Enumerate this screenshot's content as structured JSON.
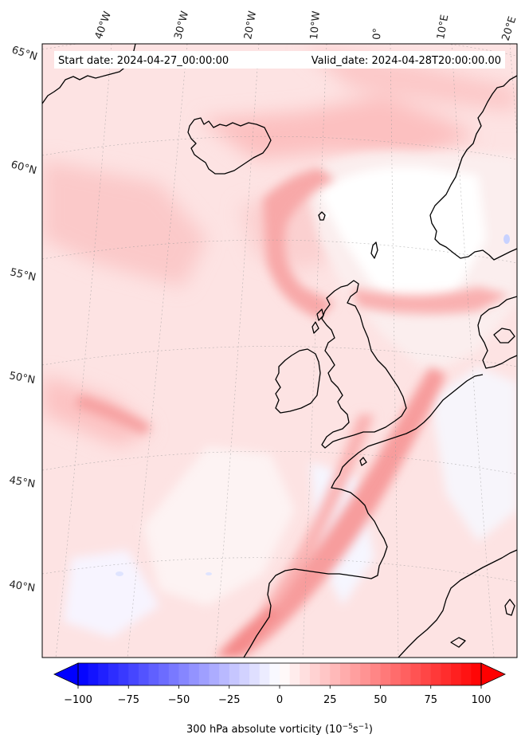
{
  "header": {
    "start_date": "Start date: 2024-04-27_00:00:00",
    "valid_date": "Valid_date: 2024-04-28T20:00:00.00"
  },
  "longitude_labels": [
    "40°W",
    "30°W",
    "20°W",
    "10°W",
    "0°",
    "10°E",
    "20°E"
  ],
  "latitude_labels": [
    "65°N",
    "60°N",
    "55°N",
    "50°N",
    "45°N",
    "40°N"
  ],
  "colorbar": {
    "ticks": [
      "−100",
      "−75",
      "−50",
      "−25",
      "0",
      "25",
      "50",
      "75",
      "100"
    ],
    "label_prefix": "300 hPa absolute vorticity (10",
    "label_exp1": "−5",
    "label_mid": "s",
    "label_exp2": "−1",
    "label_suffix": ")",
    "vmin": -100,
    "vmax": 100,
    "levels": 40,
    "colormap": "bwr",
    "colors": {
      "low": "#0000ff",
      "mid": "#ffffff",
      "high": "#ff0000"
    }
  },
  "map": {
    "field": "300 hPa absolute vorticity",
    "projection": "stereographic",
    "gridlines": "on",
    "coastlines": "on"
  }
}
